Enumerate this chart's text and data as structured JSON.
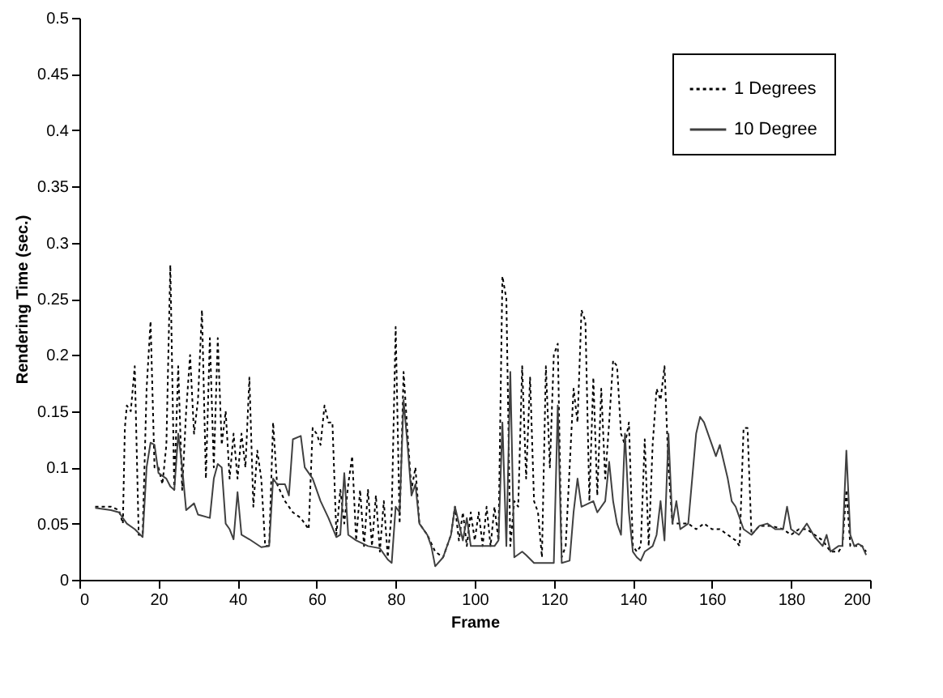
{
  "chart_data": {
    "type": "line",
    "xlabel": "Frame",
    "ylabel": "Rendering Time (sec.)",
    "xlim": [
      0,
      200
    ],
    "ylim": [
      0,
      0.5
    ],
    "xticks": [
      0,
      20,
      40,
      60,
      80,
      100,
      120,
      140,
      160,
      180,
      200
    ],
    "yticks": [
      0,
      0.05,
      0.1,
      0.15,
      0.2,
      0.25,
      0.3,
      0.35,
      0.4,
      0.45,
      0.5
    ],
    "grid": false,
    "legend": "top right",
    "marker": "none",
    "series": [
      {
        "name": "1 Degrees",
        "color": "#000000",
        "line_style": "dotted",
        "x": [
          4,
          8,
          10,
          11,
          11.5,
          12,
          13,
          14,
          15,
          16,
          17,
          18,
          19,
          20,
          21,
          22,
          23,
          24,
          25,
          26,
          27,
          28,
          29,
          30,
          31,
          32,
          33,
          34,
          35,
          36,
          37,
          38,
          39,
          40,
          41,
          42,
          43,
          44,
          45,
          46,
          47,
          48,
          49,
          50,
          52,
          54,
          56,
          58,
          59,
          60,
          61,
          62,
          63,
          64,
          65,
          66,
          67,
          68,
          69,
          70,
          71,
          72,
          73,
          74,
          75,
          76,
          77,
          78,
          79,
          80,
          81,
          82,
          83,
          84,
          85,
          86,
          88,
          90,
          92,
          94,
          95,
          96,
          97,
          98,
          99,
          100,
          101,
          102,
          103,
          104,
          105,
          106,
          107,
          108,
          109,
          110,
          111,
          112,
          113,
          114,
          115,
          116,
          117,
          118,
          119,
          120,
          121,
          122,
          123,
          124,
          125,
          126,
          127,
          128,
          129,
          130,
          131,
          132,
          133,
          134,
          135,
          136,
          137,
          138,
          139,
          140,
          141,
          142,
          143,
          144,
          145,
          146,
          147,
          148,
          149,
          150,
          152,
          154,
          156,
          158,
          160,
          162,
          164,
          166,
          167,
          168,
          169,
          170,
          172,
          175,
          178,
          180,
          182,
          184,
          186,
          188,
          190,
          192,
          193,
          194,
          195,
          196,
          198,
          199
        ],
        "values": [
          0.065,
          0.065,
          0.062,
          0.05,
          0.135,
          0.155,
          0.15,
          0.19,
          0.04,
          0.04,
          0.17,
          0.23,
          0.1,
          0.1,
          0.085,
          0.12,
          0.28,
          0.08,
          0.19,
          0.08,
          0.15,
          0.2,
          0.13,
          0.16,
          0.24,
          0.09,
          0.215,
          0.1,
          0.215,
          0.12,
          0.15,
          0.09,
          0.13,
          0.09,
          0.13,
          0.1,
          0.18,
          0.065,
          0.115,
          0.09,
          0.03,
          0.03,
          0.14,
          0.085,
          0.07,
          0.06,
          0.055,
          0.045,
          0.135,
          0.13,
          0.12,
          0.155,
          0.14,
          0.14,
          0.04,
          0.08,
          0.05,
          0.085,
          0.11,
          0.035,
          0.08,
          0.03,
          0.08,
          0.03,
          0.075,
          0.025,
          0.07,
          0.02,
          0.06,
          0.225,
          0.05,
          0.185,
          0.13,
          0.08,
          0.1,
          0.05,
          0.04,
          0.025,
          0.02,
          0.04,
          0.065,
          0.035,
          0.06,
          0.03,
          0.06,
          0.035,
          0.06,
          0.03,
          0.065,
          0.03,
          0.065,
          0.035,
          0.27,
          0.25,
          0.03,
          0.07,
          0.065,
          0.19,
          0.09,
          0.18,
          0.07,
          0.06,
          0.02,
          0.19,
          0.1,
          0.2,
          0.21,
          0.02,
          0.03,
          0.1,
          0.17,
          0.14,
          0.24,
          0.23,
          0.07,
          0.18,
          0.075,
          0.17,
          0.09,
          0.14,
          0.195,
          0.19,
          0.13,
          0.12,
          0.14,
          0.03,
          0.025,
          0.03,
          0.125,
          0.03,
          0.12,
          0.17,
          0.16,
          0.19,
          0.1,
          0.05,
          0.05,
          0.05,
          0.045,
          0.05,
          0.045,
          0.045,
          0.04,
          0.035,
          0.03,
          0.135,
          0.135,
          0.04,
          0.048,
          0.048,
          0.045,
          0.04,
          0.045,
          0.045,
          0.04,
          0.035,
          0.025,
          0.025,
          0.03,
          0.08,
          0.03,
          0.03,
          0.03,
          0.025
        ]
      },
      {
        "name": "10 Degree",
        "color": "#404040",
        "line_style": "solid",
        "x": [
          4,
          8,
          10,
          12,
          14,
          16,
          17,
          18,
          19,
          20,
          22,
          23,
          24,
          25,
          26,
          27,
          29,
          30,
          33,
          34,
          35,
          36,
          37,
          38,
          39,
          40,
          41,
          43,
          46,
          48,
          49,
          50,
          52,
          53,
          54,
          56,
          57,
          59,
          61,
          63,
          65,
          66,
          67,
          68,
          70,
          73,
          76,
          78,
          79,
          80,
          81,
          82,
          83,
          84,
          85,
          86,
          88,
          89,
          90,
          92,
          94,
          95,
          96,
          97,
          98,
          99,
          102,
          105,
          106,
          107,
          108,
          109,
          110,
          112,
          113,
          115,
          118,
          120,
          121,
          122,
          124,
          125,
          126,
          127,
          130,
          131,
          133,
          134,
          135,
          136,
          137,
          138,
          139,
          140,
          141,
          142,
          143,
          145,
          146,
          147,
          148,
          149,
          150,
          151,
          152,
          154,
          156,
          157,
          158,
          160,
          161,
          162,
          164,
          165,
          166,
          168,
          170,
          172,
          174,
          176,
          178,
          179,
          180,
          182,
          184,
          186,
          188,
          189,
          190,
          192,
          193,
          194,
          195,
          196,
          197,
          198,
          199
        ],
        "values": [
          0.064,
          0.062,
          0.06,
          0.05,
          0.045,
          0.038,
          0.1,
          0.122,
          0.12,
          0.095,
          0.09,
          0.083,
          0.08,
          0.13,
          0.1,
          0.062,
          0.068,
          0.058,
          0.055,
          0.09,
          0.103,
          0.1,
          0.05,
          0.045,
          0.036,
          0.078,
          0.04,
          0.036,
          0.029,
          0.03,
          0.09,
          0.085,
          0.085,
          0.075,
          0.125,
          0.128,
          0.1,
          0.09,
          0.07,
          0.055,
          0.038,
          0.04,
          0.095,
          0.04,
          0.035,
          0.03,
          0.028,
          0.018,
          0.015,
          0.065,
          0.06,
          0.16,
          0.12,
          0.075,
          0.085,
          0.05,
          0.04,
          0.03,
          0.012,
          0.02,
          0.04,
          0.065,
          0.05,
          0.035,
          0.055,
          0.03,
          0.03,
          0.03,
          0.035,
          0.14,
          0.03,
          0.185,
          0.02,
          0.025,
          0.022,
          0.015,
          0.015,
          0.015,
          0.155,
          0.015,
          0.017,
          0.06,
          0.09,
          0.065,
          0.07,
          0.06,
          0.07,
          0.105,
          0.07,
          0.05,
          0.04,
          0.13,
          0.06,
          0.025,
          0.02,
          0.017,
          0.025,
          0.03,
          0.04,
          0.07,
          0.035,
          0.13,
          0.05,
          0.07,
          0.045,
          0.05,
          0.13,
          0.145,
          0.14,
          0.12,
          0.11,
          0.12,
          0.09,
          0.07,
          0.065,
          0.045,
          0.04,
          0.048,
          0.05,
          0.045,
          0.045,
          0.065,
          0.045,
          0.04,
          0.05,
          0.038,
          0.03,
          0.04,
          0.025,
          0.03,
          0.03,
          0.115,
          0.04,
          0.03,
          0.032,
          0.03,
          0.022
        ]
      }
    ]
  }
}
